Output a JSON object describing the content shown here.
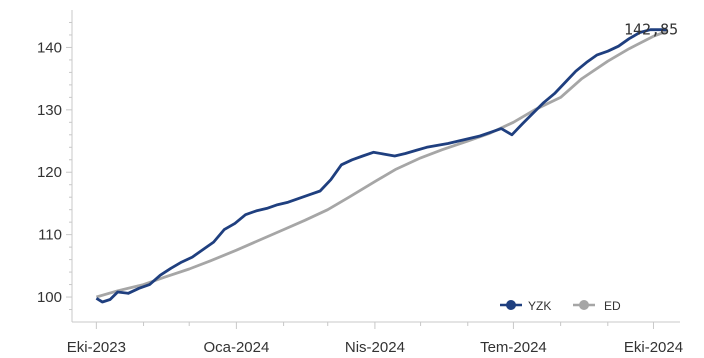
{
  "chart_data": {
    "type": "line",
    "title": "",
    "xlabel": "",
    "ylabel": "",
    "x_ticks": [
      "Eki-2023",
      "Oca-2024",
      "Nis-2024",
      "Tem-2024",
      "Eki-2024"
    ],
    "y_ticks": [
      100,
      110,
      120,
      130,
      140
    ],
    "ylim": [
      96,
      146
    ],
    "grid": false,
    "legend_position": "bottom-right",
    "last_value_label": "142,85",
    "series": [
      {
        "name": "YZK",
        "color": "#1f3f7f",
        "points": [
          [
            "2023-10-01",
            99.8
          ],
          [
            "2023-10-05",
            99.2
          ],
          [
            "2023-10-10",
            99.6
          ],
          [
            "2023-10-15",
            100.8
          ],
          [
            "2023-10-22",
            100.6
          ],
          [
            "2023-10-29",
            101.4
          ],
          [
            "2023-11-05",
            102.0
          ],
          [
            "2023-11-12",
            103.5
          ],
          [
            "2023-11-19",
            104.6
          ],
          [
            "2023-11-26",
            105.6
          ],
          [
            "2023-12-03",
            106.4
          ],
          [
            "2023-12-10",
            107.6
          ],
          [
            "2023-12-17",
            108.8
          ],
          [
            "2023-12-24",
            110.8
          ],
          [
            "2023-12-31",
            111.8
          ],
          [
            "2024-01-07",
            113.2
          ],
          [
            "2024-01-14",
            113.8
          ],
          [
            "2024-01-21",
            114.2
          ],
          [
            "2024-01-28",
            114.8
          ],
          [
            "2024-02-04",
            115.2
          ],
          [
            "2024-02-11",
            115.8
          ],
          [
            "2024-02-18",
            116.4
          ],
          [
            "2024-02-25",
            117.0
          ],
          [
            "2024-03-03",
            118.8
          ],
          [
            "2024-03-10",
            121.2
          ],
          [
            "2024-03-17",
            122.0
          ],
          [
            "2024-03-24",
            122.6
          ],
          [
            "2024-03-31",
            123.2
          ],
          [
            "2024-04-07",
            122.9
          ],
          [
            "2024-04-14",
            122.6
          ],
          [
            "2024-04-21",
            123.0
          ],
          [
            "2024-04-28",
            123.5
          ],
          [
            "2024-05-05",
            124.0
          ],
          [
            "2024-05-12",
            124.3
          ],
          [
            "2024-05-19",
            124.6
          ],
          [
            "2024-05-26",
            125.0
          ],
          [
            "2024-06-02",
            125.4
          ],
          [
            "2024-06-09",
            125.8
          ],
          [
            "2024-06-16",
            126.4
          ],
          [
            "2024-06-23",
            127.0
          ],
          [
            "2024-06-30",
            126.0
          ],
          [
            "2024-07-07",
            127.8
          ],
          [
            "2024-07-14",
            129.5
          ],
          [
            "2024-07-21",
            131.2
          ],
          [
            "2024-07-28",
            132.6
          ],
          [
            "2024-08-04",
            134.4
          ],
          [
            "2024-08-11",
            136.2
          ],
          [
            "2024-08-18",
            137.6
          ],
          [
            "2024-08-25",
            138.8
          ],
          [
            "2024-09-01",
            139.4
          ],
          [
            "2024-09-08",
            140.2
          ],
          [
            "2024-09-15",
            141.4
          ],
          [
            "2024-09-22",
            142.4
          ],
          [
            "2024-09-29",
            142.85
          ],
          [
            "2024-10-10",
            142.85
          ]
        ]
      },
      {
        "name": "ED",
        "color": "#a6a6a6",
        "points": [
          [
            "2023-10-01",
            100.0
          ],
          [
            "2023-10-15",
            101.0
          ],
          [
            "2023-11-01",
            102.0
          ],
          [
            "2023-11-15",
            103.2
          ],
          [
            "2023-12-01",
            104.5
          ],
          [
            "2023-12-15",
            105.8
          ],
          [
            "2024-01-01",
            107.5
          ],
          [
            "2024-01-15",
            109.0
          ],
          [
            "2024-02-01",
            110.8
          ],
          [
            "2024-02-15",
            112.3
          ],
          [
            "2024-03-01",
            114.0
          ],
          [
            "2024-03-15",
            116.0
          ],
          [
            "2024-04-01",
            118.5
          ],
          [
            "2024-04-15",
            120.5
          ],
          [
            "2024-05-01",
            122.3
          ],
          [
            "2024-05-15",
            123.6
          ],
          [
            "2024-06-01",
            125.0
          ],
          [
            "2024-06-15",
            126.2
          ],
          [
            "2024-07-01",
            128.0
          ],
          [
            "2024-07-15",
            130.0
          ],
          [
            "2024-08-01",
            132.0
          ],
          [
            "2024-08-15",
            135.0
          ],
          [
            "2024-09-01",
            137.8
          ],
          [
            "2024-09-15",
            139.8
          ],
          [
            "2024-10-01",
            141.8
          ],
          [
            "2024-10-10",
            142.6
          ]
        ]
      }
    ]
  }
}
